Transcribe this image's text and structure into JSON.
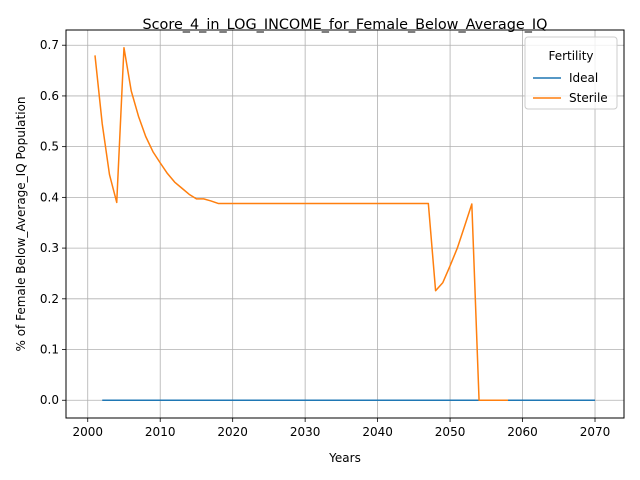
{
  "chart_data": {
    "type": "line",
    "title": "Score_4_in_LOG_INCOME_for_Female_Below_Average_IQ",
    "xlabel": "Years",
    "ylabel": "% of Female Below_Average_IQ Population",
    "xlim": [
      1997,
      2074
    ],
    "ylim": [
      -0.035,
      0.73
    ],
    "x_ticks": [
      2000,
      2010,
      2020,
      2030,
      2040,
      2050,
      2060,
      2070
    ],
    "y_ticks": [
      0.0,
      0.1,
      0.2,
      0.3,
      0.4,
      0.5,
      0.6,
      0.7
    ],
    "x_tick_labels": [
      "2000",
      "2010",
      "2020",
      "2030",
      "2040",
      "2050",
      "2060",
      "2070"
    ],
    "y_tick_labels": [
      "0.0",
      "0.1",
      "0.2",
      "0.3",
      "0.4",
      "0.5",
      "0.6",
      "0.7"
    ],
    "grid": true,
    "legend": {
      "title": "Fertility",
      "placement": "top-right"
    },
    "series": [
      {
        "name": "Ideal",
        "color": "#1f77b4",
        "x": [
          2002,
          2070
        ],
        "y": [
          0.0,
          0.0
        ]
      },
      {
        "name": "Sterile",
        "color": "#ff7f0e",
        "x": [
          2001,
          2002,
          2003,
          2004,
          2005,
          2006,
          2007,
          2008,
          2009,
          2010,
          2011,
          2012,
          2013,
          2014,
          2015,
          2016,
          2017,
          2018,
          2019,
          2020,
          2025,
          2030,
          2035,
          2040,
          2045,
          2047,
          2048,
          2049,
          2050,
          2051,
          2052,
          2053,
          2054,
          2055,
          2056,
          2057,
          2058
        ],
        "y": [
          0.68,
          0.545,
          0.445,
          0.39,
          0.695,
          0.61,
          0.56,
          0.52,
          0.49,
          0.468,
          0.447,
          0.43,
          0.418,
          0.406,
          0.397,
          0.397,
          0.393,
          0.388,
          0.388,
          0.388,
          0.388,
          0.388,
          0.388,
          0.388,
          0.388,
          0.388,
          0.216,
          0.232,
          0.265,
          0.3,
          0.343,
          0.387,
          0.0,
          0.0,
          0.0,
          0.0,
          0.0
        ]
      }
    ]
  }
}
